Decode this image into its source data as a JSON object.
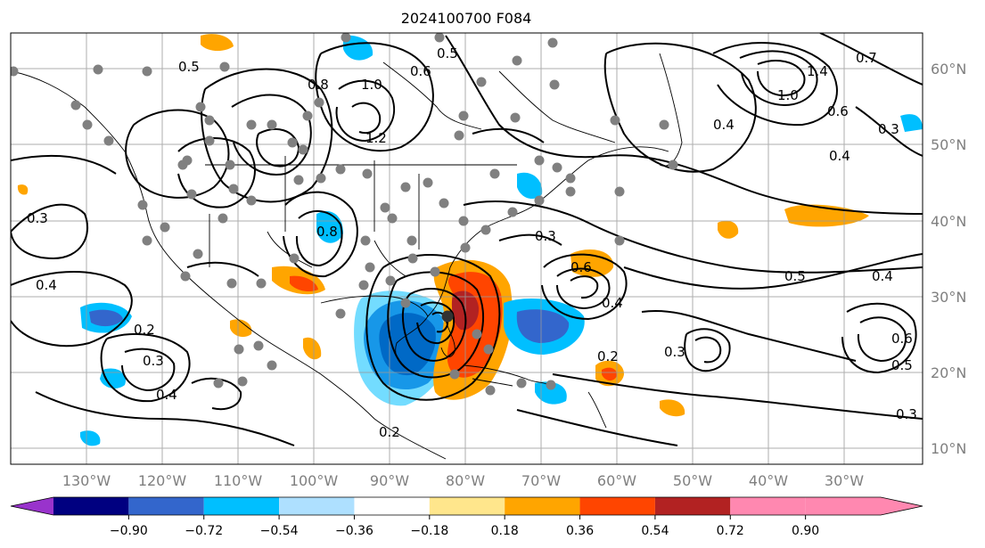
{
  "title": "2024100700 F084",
  "map": {
    "lon_labels": [
      "130°W",
      "120°W",
      "110°W",
      "100°W",
      "90°W",
      "80°W",
      "70°W",
      "60°W",
      "50°W",
      "40°W",
      "30°W"
    ],
    "lat_labels": [
      "60°N",
      "50°N",
      "40°N",
      "30°N",
      "20°N",
      "10°N"
    ],
    "contour_labels": [
      "0.3",
      "0.4",
      "0.5",
      "0.6",
      "0.8",
      "1.0",
      "1.2",
      "0.7",
      "0.2",
      "0.3",
      "0.4",
      "0.5",
      "0.6",
      "0.4",
      "0.3",
      "0.2",
      "0.4",
      "0.5",
      "0.8",
      "1.0",
      "1.4",
      "0.6",
      "0.3",
      "0.4",
      "0.2",
      "0.3",
      "0.6",
      "0.5",
      "0.4",
      "0.3"
    ],
    "station_marker": "gray-dot",
    "land_outline": "black"
  },
  "colorbar": {
    "ticks": [
      "−0.90",
      "−0.72",
      "−0.54",
      "−0.36",
      "−0.18",
      "0.18",
      "0.36",
      "0.54",
      "0.72",
      "0.90"
    ],
    "colors": [
      "#9933cc",
      "#000080",
      "#3366cc",
      "#00bfff",
      "#aee0ff",
      "#ffffff",
      "#ffe68c",
      "#ffa500",
      "#ff4500",
      "#b22222",
      "#ff88b0"
    ],
    "extend": "both"
  }
}
